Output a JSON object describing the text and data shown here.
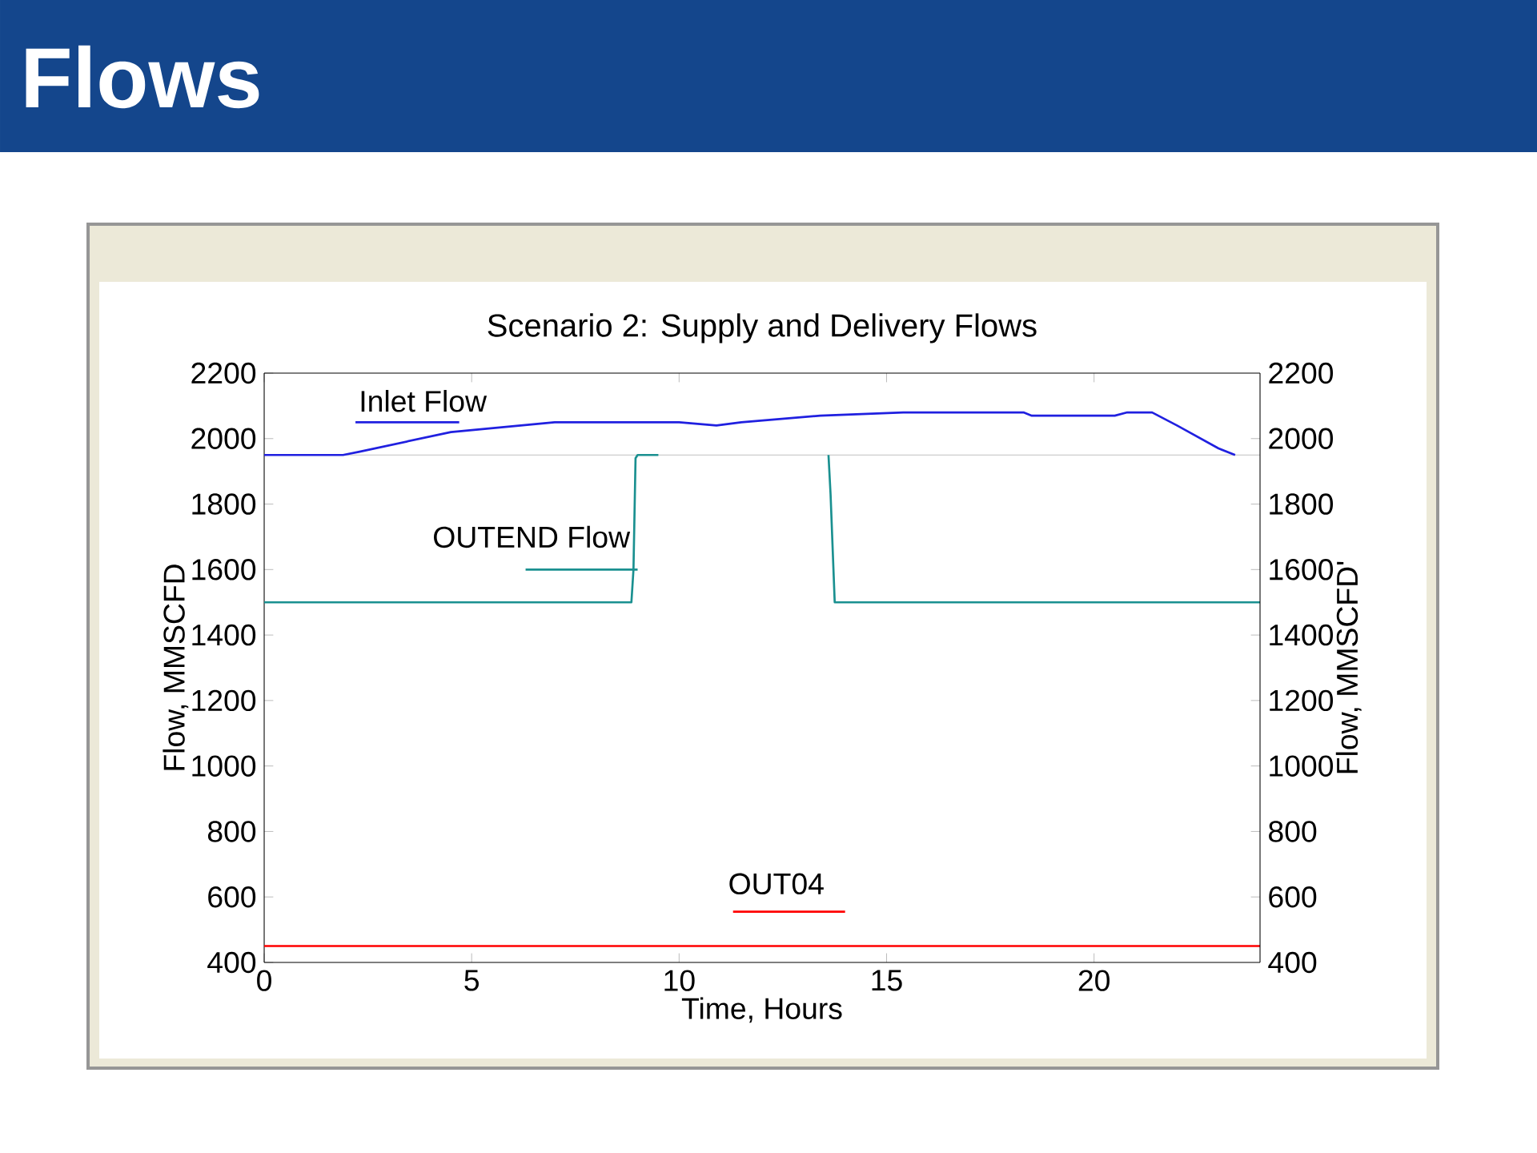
{
  "chart_data": {
    "type": "line",
    "title": "Flows",
    "subtitle": "Scenario 2:  Supply and Delivery Flows",
    "xlabel": "Time, Hours",
    "ylabel": "Flow, MMSCFD",
    "y2label": "Flow, MMSCFD'",
    "xlim": [
      0,
      24
    ],
    "xticks": [
      0,
      5,
      10,
      15,
      20
    ],
    "ylim": [
      400,
      2200
    ],
    "yticks": [
      400,
      600,
      800,
      1000,
      1200,
      1400,
      1600,
      1800,
      2000,
      2200
    ],
    "y2lim": [
      400,
      2200
    ],
    "y2ticks": [
      400,
      600,
      800,
      1000,
      1200,
      1400,
      1600,
      1800,
      2000,
      2200
    ],
    "grid": false,
    "legend": "top left",
    "line_style": "solid",
    "ref_lines": [
      {
        "axis": "y",
        "value": 1950,
        "color": "#c0c0c0"
      }
    ],
    "series": [
      {
        "name": "Inlet Flow",
        "color": "#2020e0",
        "x": [
          0,
          1.9,
          2.3,
          4.5,
          7.0,
          10.0,
          10.9,
          11.5,
          13.4,
          15.4,
          18.3,
          18.5,
          20.5,
          20.8,
          21.4,
          22.0,
          23.0,
          23.4
        ],
        "values": [
          1950,
          1950,
          1960,
          2020,
          2050,
          2050,
          2040,
          2050,
          2070,
          2080,
          2080,
          2070,
          2070,
          2080,
          2080,
          2040,
          1970,
          1950
        ]
      },
      {
        "name": "OUTEND Flow",
        "color": "#1a9090",
        "x": [
          0,
          8.85,
          8.9,
          8.95,
          9.0,
          9.5,
          11.5,
          13.6,
          13.65,
          13.75,
          24
        ],
        "values": [
          1500,
          1500,
          1600,
          1940,
          1950,
          1950,
          null,
          1950,
          1830,
          1500,
          1500
        ]
      },
      {
        "name": "OUT04",
        "color": "#ff0000",
        "x": [
          0,
          24
        ],
        "values": [
          450,
          450
        ]
      }
    ]
  }
}
